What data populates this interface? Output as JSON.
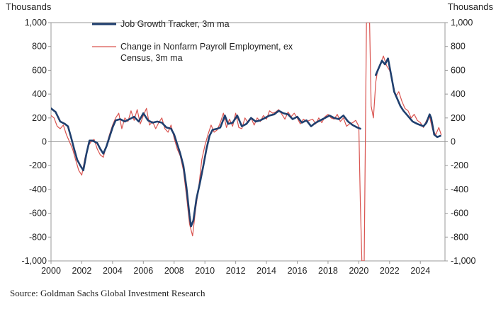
{
  "chart_data": {
    "type": "line",
    "y_unit_left": "Thousands",
    "y_unit_right": "Thousands",
    "xlim": [
      2000,
      2025.6
    ],
    "ylim": [
      -1000,
      1000
    ],
    "x_ticks": [
      "2000",
      "2002",
      "2004",
      "2006",
      "2008",
      "2010",
      "2012",
      "2014",
      "2016",
      "2018",
      "2020",
      "2022",
      "2024"
    ],
    "y_ticks": [
      "1,000",
      "800",
      "600",
      "400",
      "200",
      "0",
      "-200",
      "-400",
      "-600",
      "-800",
      "-1,000"
    ],
    "grid": false,
    "legend_position": "top-left",
    "series": [
      {
        "name": "Job Growth Tracker, 3m ma",
        "color": "#1f3f6e",
        "points": [
          [
            2000.0,
            280
          ],
          [
            2000.3,
            250
          ],
          [
            2000.6,
            170
          ],
          [
            2000.9,
            150
          ],
          [
            2001.1,
            130
          ],
          [
            2001.3,
            40
          ],
          [
            2001.5,
            -60
          ],
          [
            2001.7,
            -150
          ],
          [
            2001.9,
            -200
          ],
          [
            2002.1,
            -240
          ],
          [
            2002.3,
            -100
          ],
          [
            2002.5,
            10
          ],
          [
            2002.7,
            10
          ],
          [
            2003.0,
            -10
          ],
          [
            2003.2,
            -60
          ],
          [
            2003.4,
            -100
          ],
          [
            2003.6,
            -40
          ],
          [
            2003.8,
            40
          ],
          [
            2004.0,
            120
          ],
          [
            2004.2,
            180
          ],
          [
            2004.5,
            190
          ],
          [
            2004.8,
            170
          ],
          [
            2005.1,
            190
          ],
          [
            2005.4,
            210
          ],
          [
            2005.7,
            170
          ],
          [
            2006.0,
            240
          ],
          [
            2006.3,
            180
          ],
          [
            2006.6,
            160
          ],
          [
            2006.9,
            170
          ],
          [
            2007.2,
            160
          ],
          [
            2007.5,
            120
          ],
          [
            2007.8,
            110
          ],
          [
            2008.0,
            60
          ],
          [
            2008.2,
            -20
          ],
          [
            2008.4,
            -100
          ],
          [
            2008.6,
            -200
          ],
          [
            2008.8,
            -380
          ],
          [
            2009.0,
            -620
          ],
          [
            2009.1,
            -710
          ],
          [
            2009.25,
            -660
          ],
          [
            2009.45,
            -480
          ],
          [
            2009.7,
            -330
          ],
          [
            2009.9,
            -200
          ],
          [
            2010.1,
            -60
          ],
          [
            2010.3,
            50
          ],
          [
            2010.5,
            100
          ],
          [
            2010.8,
            110
          ],
          [
            2011.0,
            120
          ],
          [
            2011.3,
            220
          ],
          [
            2011.5,
            150
          ],
          [
            2011.8,
            160
          ],
          [
            2012.1,
            220
          ],
          [
            2012.4,
            130
          ],
          [
            2012.7,
            150
          ],
          [
            2013.0,
            200
          ],
          [
            2013.3,
            170
          ],
          [
            2013.6,
            180
          ],
          [
            2013.9,
            200
          ],
          [
            2014.2,
            220
          ],
          [
            2014.5,
            230
          ],
          [
            2014.8,
            260
          ],
          [
            2015.1,
            240
          ],
          [
            2015.4,
            230
          ],
          [
            2015.7,
            190
          ],
          [
            2016.0,
            210
          ],
          [
            2016.3,
            160
          ],
          [
            2016.6,
            180
          ],
          [
            2016.9,
            130
          ],
          [
            2017.2,
            160
          ],
          [
            2017.5,
            180
          ],
          [
            2017.8,
            200
          ],
          [
            2018.1,
            220
          ],
          [
            2018.4,
            200
          ],
          [
            2018.7,
            190
          ],
          [
            2019.0,
            220
          ],
          [
            2019.3,
            170
          ],
          [
            2019.6,
            140
          ],
          [
            2019.9,
            120
          ],
          [
            2020.1,
            110
          ],
          null,
          [
            2021.1,
            560
          ],
          [
            2021.3,
            620
          ],
          [
            2021.5,
            680
          ],
          [
            2021.7,
            650
          ],
          [
            2021.9,
            700
          ],
          [
            2022.1,
            560
          ],
          [
            2022.3,
            420
          ],
          [
            2022.5,
            360
          ],
          [
            2022.7,
            300
          ],
          [
            2022.9,
            260
          ],
          [
            2023.1,
            230
          ],
          [
            2023.3,
            200
          ],
          [
            2023.5,
            170
          ],
          [
            2023.8,
            150
          ],
          [
            2024.0,
            140
          ],
          [
            2024.2,
            130
          ],
          [
            2024.4,
            160
          ],
          [
            2024.6,
            230
          ],
          [
            2024.7,
            200
          ],
          [
            2024.9,
            60
          ],
          [
            2025.1,
            40
          ],
          [
            2025.3,
            50
          ]
        ]
      },
      {
        "name": "Change in Nonfarm Payroll Employment, ex Census, 3m ma",
        "name_lines": [
          "Change in Nonfarm Payroll Employment, ex",
          "Census, 3m ma"
        ],
        "color": "#d9534f",
        "points": [
          [
            2000.0,
            220
          ],
          [
            2000.2,
            200
          ],
          [
            2000.4,
            130
          ],
          [
            2000.6,
            110
          ],
          [
            2000.8,
            140
          ],
          [
            2001.0,
            60
          ],
          [
            2001.2,
            0
          ],
          [
            2001.4,
            -60
          ],
          [
            2001.6,
            -150
          ],
          [
            2001.8,
            -240
          ],
          [
            2002.0,
            -280
          ],
          [
            2002.2,
            -140
          ],
          [
            2002.4,
            -40
          ],
          [
            2002.6,
            0
          ],
          [
            2002.8,
            20
          ],
          [
            2003.0,
            -60
          ],
          [
            2003.2,
            -110
          ],
          [
            2003.4,
            -130
          ],
          [
            2003.6,
            -30
          ],
          [
            2003.8,
            60
          ],
          [
            2004.0,
            140
          ],
          [
            2004.2,
            200
          ],
          [
            2004.4,
            240
          ],
          [
            2004.6,
            110
          ],
          [
            2004.8,
            200
          ],
          [
            2005.0,
            170
          ],
          [
            2005.2,
            260
          ],
          [
            2005.4,
            180
          ],
          [
            2005.6,
            270
          ],
          [
            2005.8,
            150
          ],
          [
            2006.0,
            220
          ],
          [
            2006.2,
            280
          ],
          [
            2006.4,
            140
          ],
          [
            2006.6,
            170
          ],
          [
            2006.8,
            110
          ],
          [
            2007.0,
            160
          ],
          [
            2007.2,
            200
          ],
          [
            2007.4,
            110
          ],
          [
            2007.6,
            80
          ],
          [
            2007.8,
            140
          ],
          [
            2008.0,
            30
          ],
          [
            2008.2,
            -60
          ],
          [
            2008.4,
            -120
          ],
          [
            2008.6,
            -240
          ],
          [
            2008.8,
            -450
          ],
          [
            2009.0,
            -690
          ],
          [
            2009.2,
            -790
          ],
          [
            2009.4,
            -560
          ],
          [
            2009.6,
            -380
          ],
          [
            2009.8,
            -150
          ],
          [
            2010.0,
            -30
          ],
          [
            2010.2,
            60
          ],
          [
            2010.4,
            140
          ],
          [
            2010.6,
            80
          ],
          [
            2010.8,
            100
          ],
          [
            2011.0,
            160
          ],
          [
            2011.2,
            240
          ],
          [
            2011.4,
            120
          ],
          [
            2011.6,
            190
          ],
          [
            2011.8,
            130
          ],
          [
            2012.0,
            240
          ],
          [
            2012.2,
            120
          ],
          [
            2012.4,
            110
          ],
          [
            2012.6,
            200
          ],
          [
            2012.8,
            160
          ],
          [
            2013.0,
            200
          ],
          [
            2013.2,
            140
          ],
          [
            2013.4,
            200
          ],
          [
            2013.6,
            170
          ],
          [
            2013.8,
            220
          ],
          [
            2014.0,
            190
          ],
          [
            2014.2,
            260
          ],
          [
            2014.4,
            240
          ],
          [
            2014.6,
            250
          ],
          [
            2014.8,
            270
          ],
          [
            2015.0,
            230
          ],
          [
            2015.2,
            190
          ],
          [
            2015.4,
            250
          ],
          [
            2015.6,
            210
          ],
          [
            2015.8,
            240
          ],
          [
            2016.0,
            200
          ],
          [
            2016.2,
            150
          ],
          [
            2016.4,
            190
          ],
          [
            2016.6,
            170
          ],
          [
            2016.8,
            180
          ],
          [
            2017.0,
            190
          ],
          [
            2017.2,
            150
          ],
          [
            2017.4,
            200
          ],
          [
            2017.6,
            160
          ],
          [
            2017.8,
            210
          ],
          [
            2018.0,
            230
          ],
          [
            2018.2,
            200
          ],
          [
            2018.4,
            190
          ],
          [
            2018.6,
            230
          ],
          [
            2018.8,
            170
          ],
          [
            2019.0,
            200
          ],
          [
            2019.2,
            130
          ],
          [
            2019.4,
            150
          ],
          [
            2019.6,
            160
          ],
          [
            2019.8,
            180
          ],
          [
            2020.0,
            130
          ],
          [
            2020.1,
            -500
          ],
          [
            2020.2,
            -1000
          ],
          [
            2020.35,
            -1000
          ],
          [
            2020.5,
            1000
          ],
          [
            2020.7,
            1000
          ],
          [
            2020.8,
            300
          ],
          [
            2020.95,
            200
          ],
          [
            2021.1,
            500
          ],
          [
            2021.2,
            580
          ],
          [
            2021.4,
            650
          ],
          [
            2021.6,
            720
          ],
          [
            2021.8,
            640
          ],
          [
            2022.0,
            600
          ],
          [
            2022.2,
            500
          ],
          [
            2022.4,
            380
          ],
          [
            2022.6,
            420
          ],
          [
            2022.8,
            340
          ],
          [
            2023.0,
            280
          ],
          [
            2023.2,
            260
          ],
          [
            2023.4,
            200
          ],
          [
            2023.6,
            230
          ],
          [
            2023.8,
            180
          ],
          [
            2024.0,
            160
          ],
          [
            2024.2,
            120
          ],
          [
            2024.4,
            180
          ],
          [
            2024.6,
            210
          ],
          [
            2024.8,
            100
          ],
          [
            2025.0,
            60
          ],
          [
            2025.2,
            120
          ],
          [
            2025.35,
            60
          ]
        ]
      }
    ]
  },
  "source": "Source: Goldman Sachs Global Investment Research"
}
